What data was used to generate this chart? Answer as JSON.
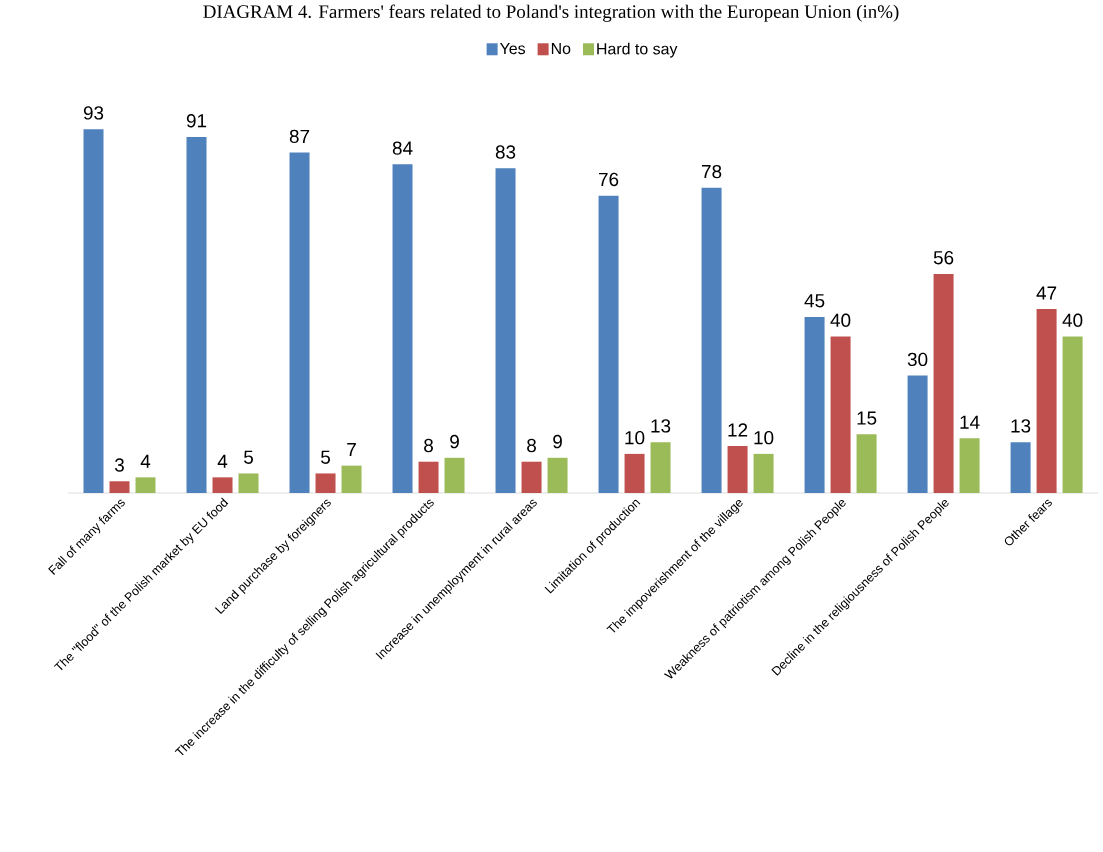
{
  "chart_data": {
    "type": "bar",
    "title": "DIAGRAM 4. Farmers' fears related to Poland's integration with the European Union (in%)",
    "categories": [
      "Fall of many farms",
      "The \"flood\" of the Polish market by EU food",
      "Land purchase by foreigners",
      "The increase in the difficulty of selling Polish agricultural products",
      "Increase in unemployment in rural areas",
      "Limitation of production",
      "The impoverishment of the village",
      "Weakness of patriotism among Polish People",
      "Decline in the religiousness of Polish People",
      "Other fears"
    ],
    "series": [
      {
        "name": "Yes",
        "color": "#4f81bd",
        "values": [
          93,
          91,
          87,
          84,
          83,
          76,
          78,
          45,
          30,
          13
        ]
      },
      {
        "name": "No",
        "color": "#c0504d",
        "values": [
          3,
          4,
          5,
          8,
          8,
          10,
          12,
          40,
          56,
          47
        ]
      },
      {
        "name": "Hard to say",
        "color": "#9bbb59",
        "values": [
          4,
          5,
          7,
          9,
          9,
          13,
          10,
          15,
          14,
          40
        ]
      }
    ],
    "data_labels": true,
    "legend": "top"
  }
}
